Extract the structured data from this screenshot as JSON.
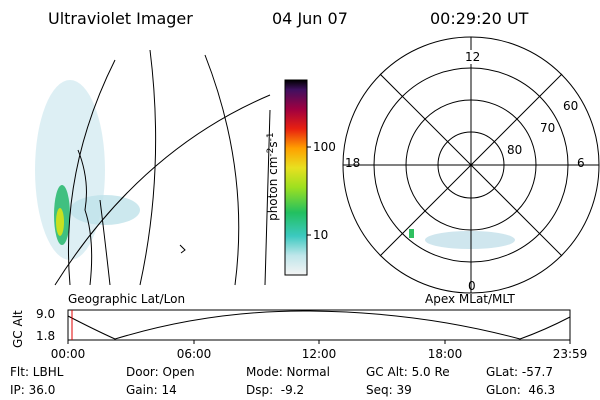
{
  "header": {
    "title": "Ultraviolet Imager",
    "date": "04 Jun 07",
    "time": "00:29:20 UT"
  },
  "colorbar": {
    "label": "photon cm",
    "exp1": "-2",
    "unit2": "s",
    "exp2": "-1",
    "ticks": [
      "100",
      "10"
    ]
  },
  "map": {
    "label": "Geographic Lat/Lon"
  },
  "polar": {
    "label": "Apex MLat/MLT",
    "mlt": [
      "12",
      "18",
      "6",
      "0"
    ],
    "mlat": [
      "60",
      "70",
      "80"
    ]
  },
  "altitude": {
    "label": "GC Alt",
    "ticks": [
      "9.0",
      "1.8"
    ],
    "times": [
      "00:00",
      "06:00",
      "12:00",
      "18:00",
      "23:59"
    ]
  },
  "footer": {
    "rows": [
      [
        "Flt: LBHL",
        "Door: Open",
        "Mode: Normal",
        "GC Alt: 5.0 Re",
        "GLat: -57.7"
      ],
      [
        "IP: 36.0",
        "Gain: 14",
        "Dsp:  -9.2",
        "Seq: 39",
        "GLon:  46.3"
      ]
    ]
  }
}
